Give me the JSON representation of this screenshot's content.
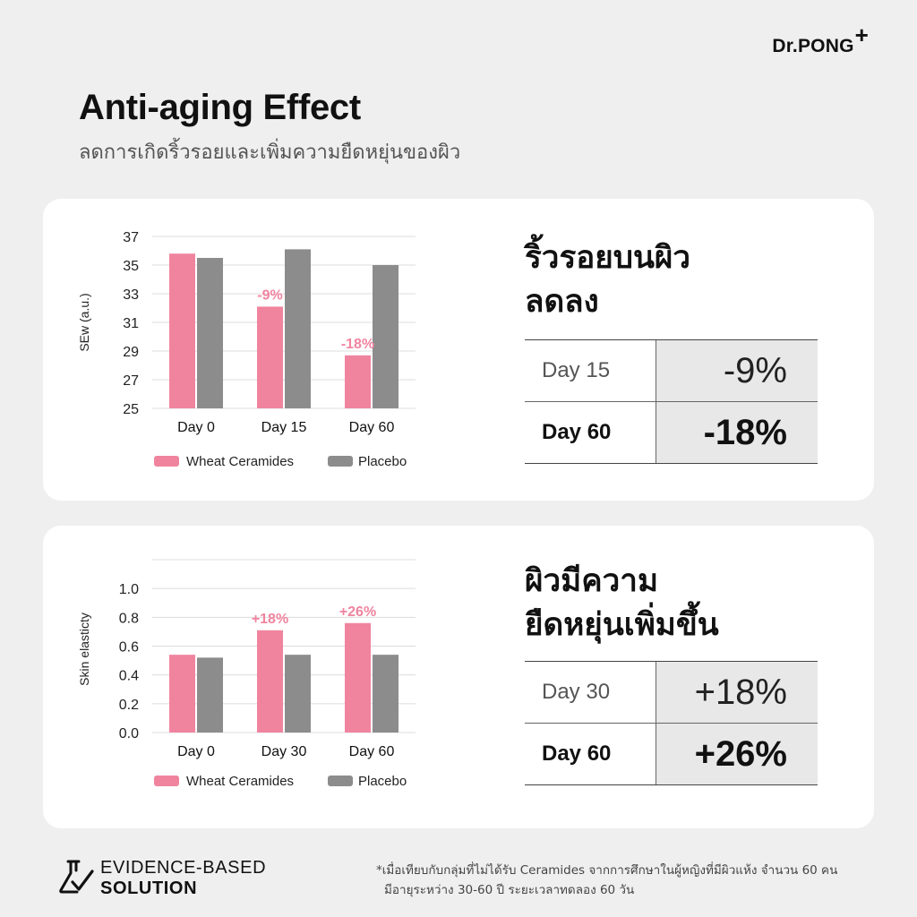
{
  "brand": {
    "name": "Dr.PONG",
    "plus": "+"
  },
  "header": {
    "title": "Anti-aging Effect",
    "subtitle": "ลดการเกิดริ้วรอยและเพิ่มความยืดหยุ่นของผิว"
  },
  "sections": [
    {
      "headline_line1": "ริ้วรอยบนผิว",
      "headline_line2": "ลดลง",
      "rows": [
        {
          "label": "Day 15",
          "value": "-9%"
        },
        {
          "label": "Day 60",
          "value": "-18%"
        }
      ]
    },
    {
      "headline_line1": "ผิวมีความ",
      "headline_line2": "ยืดหยุ่นเพิ่มขึ้น",
      "rows": [
        {
          "label": "Day 30",
          "value": "+18%"
        },
        {
          "label": "Day 60",
          "value": "+26%"
        }
      ]
    }
  ],
  "chart_data": [
    {
      "type": "bar",
      "categories": [
        "Day 0",
        "Day 15",
        "Day 60"
      ],
      "series": [
        {
          "name": "Wheat  Ceramides",
          "values": [
            35.8,
            32.1,
            28.7
          ],
          "color": "#f0849f"
        },
        {
          "name": "Placebo",
          "values": [
            35.5,
            36.1,
            35.0
          ],
          "color": "#8c8c8c"
        }
      ],
      "ylabel": "SEw (a.u.)",
      "ylim": [
        25,
        37
      ],
      "yticks": [
        "37",
        "35",
        "33",
        "31",
        "29",
        "27",
        "25"
      ],
      "annotations": [
        {
          "category": "Day 15",
          "text": "-9%"
        },
        {
          "category": "Day 60",
          "text": "-18%"
        }
      ],
      "grid": true,
      "legend": "bottom"
    },
    {
      "type": "bar",
      "categories": [
        "Day 0",
        "Day 30",
        "Day 60"
      ],
      "series": [
        {
          "name": "Wheat  Ceramides",
          "values": [
            0.54,
            0.71,
            0.76
          ],
          "color": "#f0849f"
        },
        {
          "name": "Placebo",
          "values": [
            0.52,
            0.54,
            0.54
          ],
          "color": "#8c8c8c"
        }
      ],
      "ylabel": "Skin elasticty",
      "ylim": [
        0,
        1.2
      ],
      "yticks": [
        "1.0",
        "0.8",
        "0.6",
        "0.4",
        "0.2",
        "0.0"
      ],
      "annotations": [
        {
          "category": "Day 30",
          "text": "+18%"
        },
        {
          "category": "Day 60",
          "text": "+26%"
        }
      ],
      "grid": true,
      "legend": "bottom"
    }
  ],
  "footer": {
    "evidence_line1": "EVIDENCE-BASED",
    "evidence_line2": "SOLUTION",
    "note_line1": "*เมื่อเทียบกับกลุ่มที่ไม่ได้รับ Ceramides จากการศึกษาในผู้หญิงที่มีผิวแห้ง จำนวน 60 คน",
    "note_line2": "มีอายุระหว่าง 30-60 ปี ระยะเวลาทดลอง 60 วัน"
  },
  "colors": {
    "accent": "#f0849f",
    "placebo": "#8c8c8c",
    "card": "#ffffff",
    "background": "#efefef"
  }
}
